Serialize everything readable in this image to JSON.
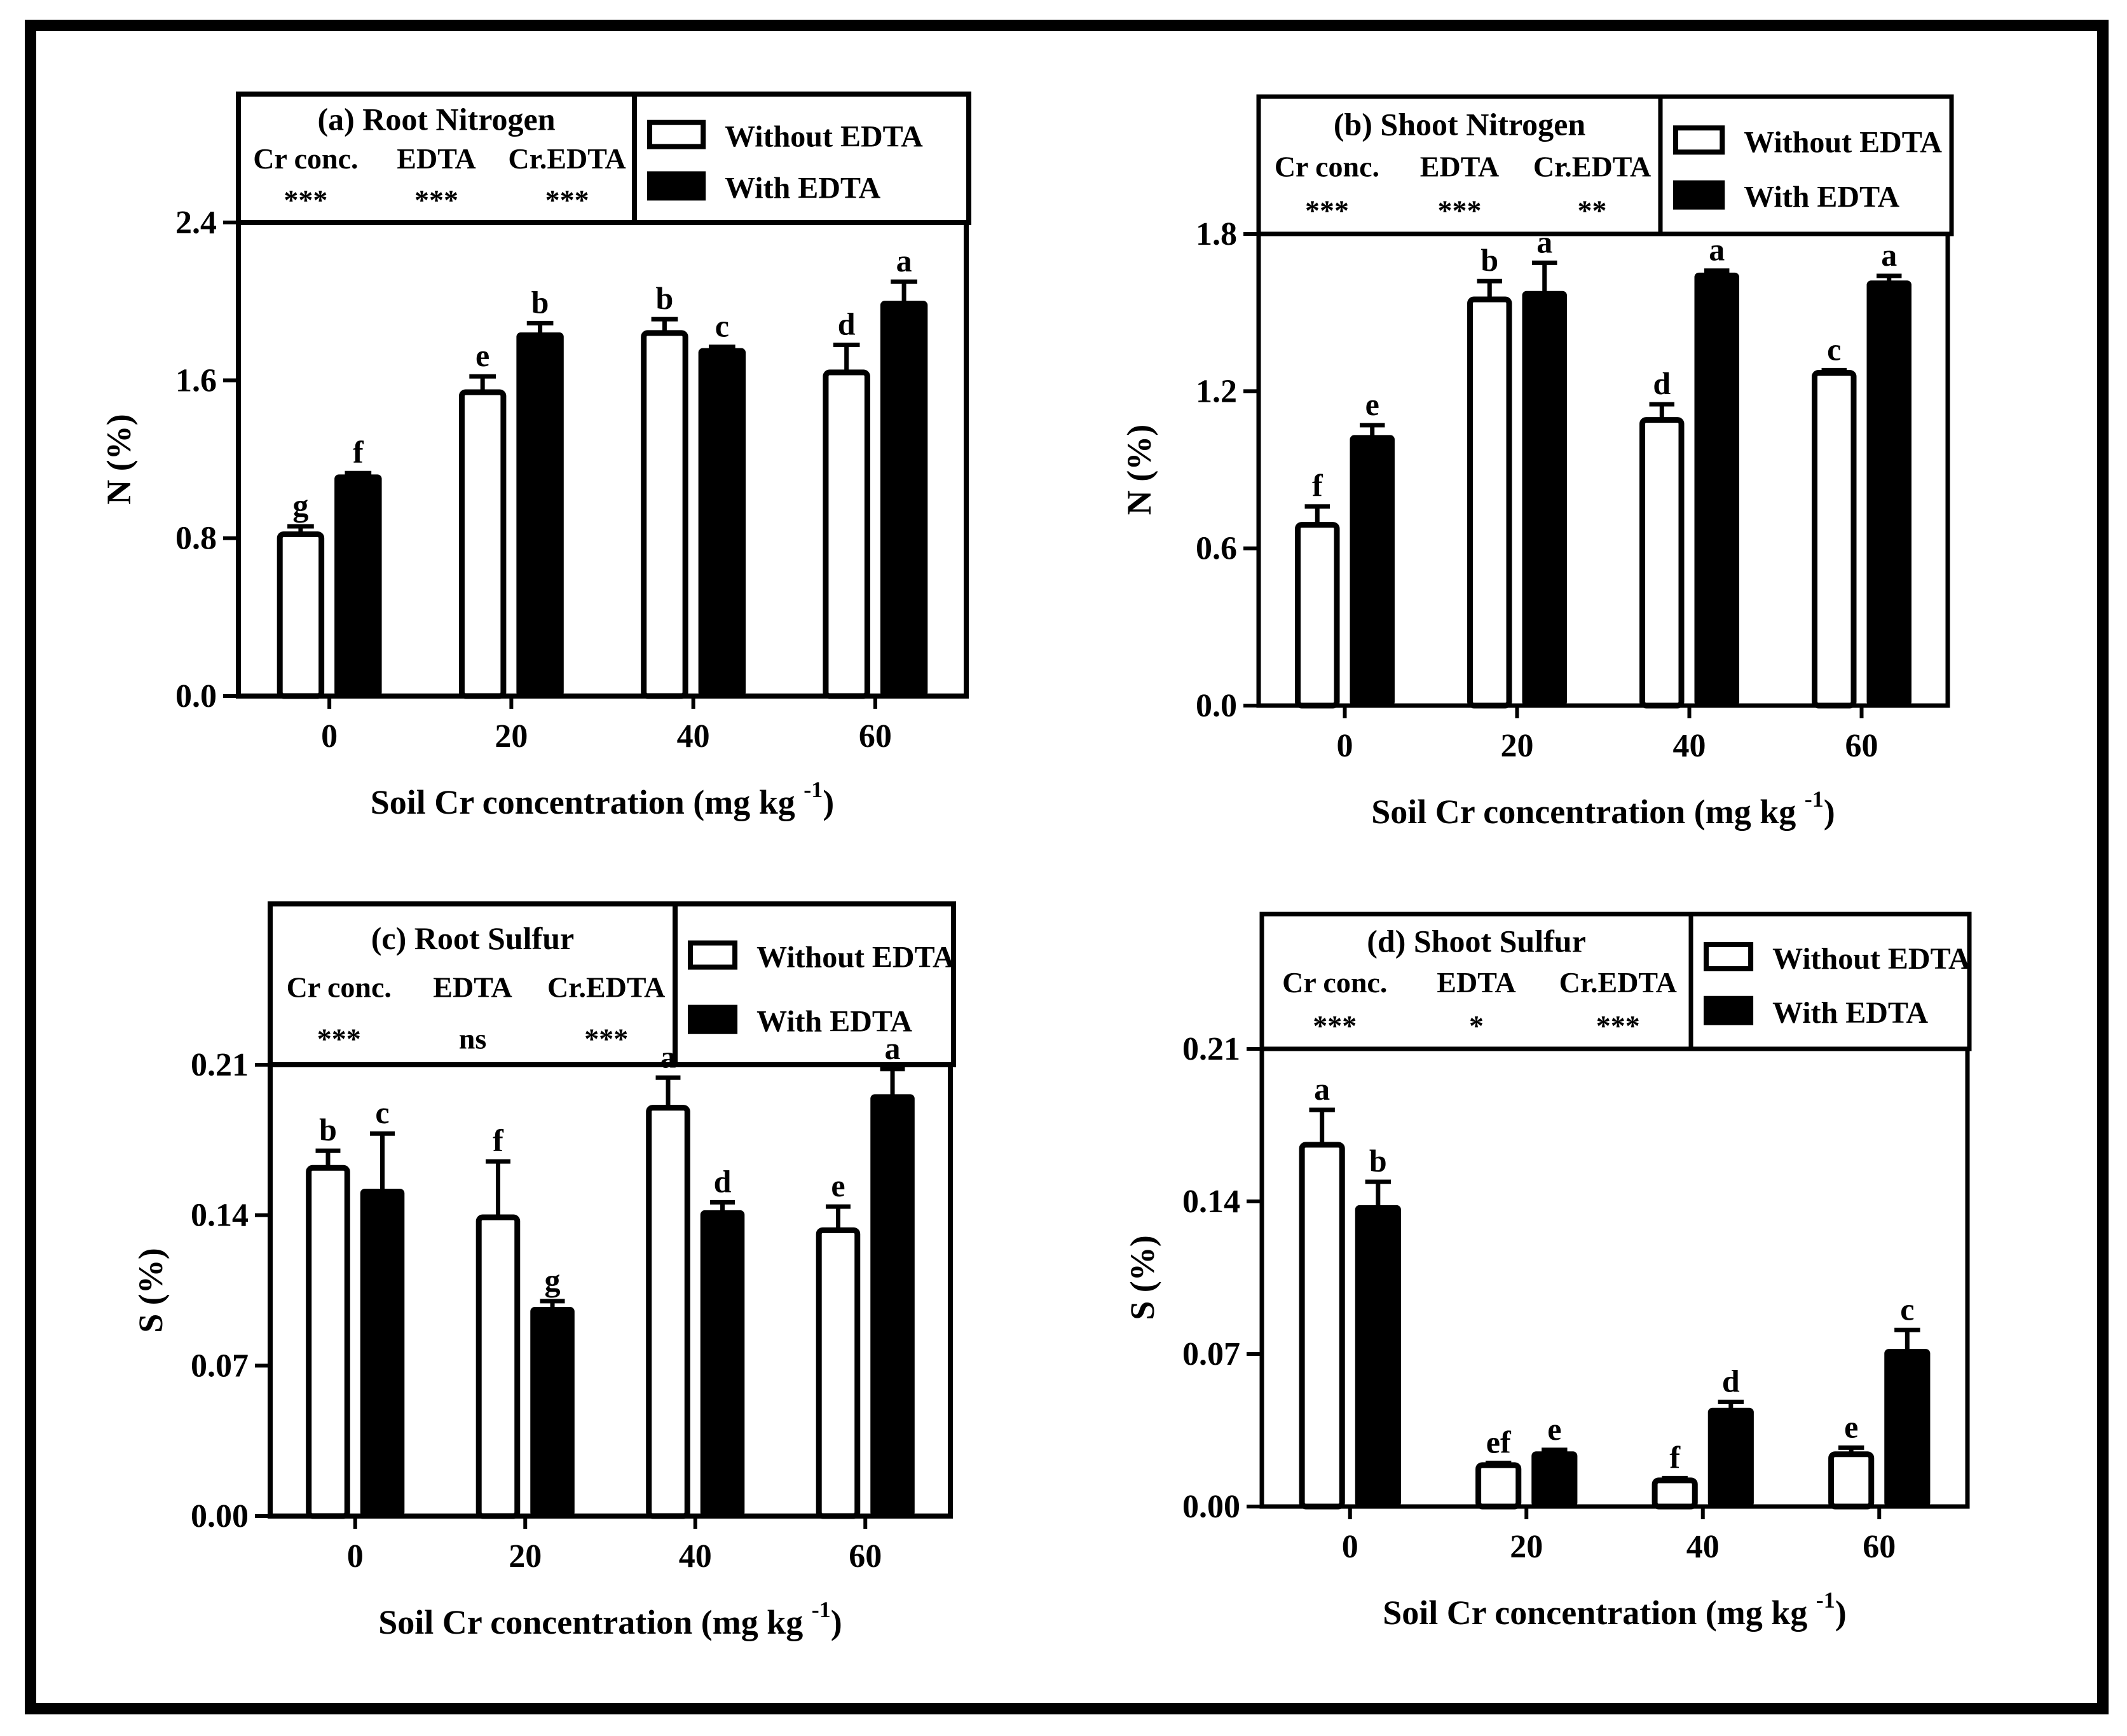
{
  "figure": {
    "background": "#ffffff",
    "frame_color": "#000000"
  },
  "chart_data": [
    {
      "type": "bar",
      "title": "(a) Root Nitrogen",
      "xlabel": "Soil Cr concentration (mg kg",
      "xlabel_sup": "-1",
      "xlabel_close": ")",
      "ylabel": "N (%)",
      "categories": [
        "0",
        "20",
        "40",
        "60"
      ],
      "ylim": [
        0,
        2.4
      ],
      "yticks": [
        "0.0",
        "0.8",
        "1.6",
        "2.4"
      ],
      "stats": {
        "headers": [
          "Cr conc.",
          "EDTA",
          "Cr.EDTA"
        ],
        "values": [
          "***",
          "***",
          "***"
        ]
      },
      "legend": [
        "Without EDTA",
        "With EDTA"
      ],
      "series": [
        {
          "name": "Without EDTA",
          "fill": "#ffffff",
          "values": [
            0.82,
            1.54,
            1.84,
            1.64
          ],
          "errors": [
            0.04,
            0.08,
            0.07,
            0.14
          ],
          "letters": [
            "g",
            "e",
            "b",
            "d"
          ]
        },
        {
          "name": "With EDTA",
          "fill": "#000000",
          "values": [
            1.12,
            1.84,
            1.76,
            2.0
          ],
          "errors": [
            0.01,
            0.05,
            0.01,
            0.1
          ],
          "letters": [
            "f",
            "b",
            "c",
            "a"
          ]
        }
      ]
    },
    {
      "type": "bar",
      "title": "(b) Shoot Nitrogen",
      "xlabel": "Soil Cr concentration (mg kg",
      "xlabel_sup": "-1",
      "xlabel_close": ")",
      "ylabel": "N (%)",
      "categories": [
        "0",
        "20",
        "40",
        "60"
      ],
      "ylim": [
        0,
        1.8
      ],
      "yticks": [
        "0.0",
        "0.6",
        "1.2",
        "1.8"
      ],
      "stats": {
        "headers": [
          "Cr conc.",
          "EDTA",
          "Cr.EDTA"
        ],
        "values": [
          "***",
          "***",
          "**"
        ]
      },
      "legend": [
        "Without EDTA",
        "With EDTA"
      ],
      "series": [
        {
          "name": "Without EDTA",
          "fill": "#ffffff",
          "values": [
            0.69,
            1.55,
            1.09,
            1.27
          ],
          "errors": [
            0.07,
            0.07,
            0.06,
            0.01
          ],
          "letters": [
            "f",
            "b",
            "d",
            "c"
          ]
        },
        {
          "name": "With EDTA",
          "fill": "#000000",
          "values": [
            1.03,
            1.58,
            1.65,
            1.62
          ],
          "errors": [
            0.04,
            0.11,
            0.01,
            0.02
          ],
          "letters": [
            "e",
            "a",
            "a",
            "a"
          ]
        }
      ]
    },
    {
      "type": "bar",
      "title": "(c) Root Sulfur",
      "xlabel": "Soil Cr concentration (mg kg",
      "xlabel_sup": "-1",
      "xlabel_close": ")",
      "ylabel": "S (%)",
      "categories": [
        "0",
        "20",
        "40",
        "60"
      ],
      "ylim": [
        0,
        0.21
      ],
      "yticks": [
        "0.00",
        "0.07",
        "0.14",
        "0.21"
      ],
      "stats": {
        "headers": [
          "Cr conc.",
          "EDTA",
          "Cr.EDTA"
        ],
        "values": [
          "***",
          "ns",
          "***"
        ]
      },
      "legend": [
        "Without EDTA",
        "With EDTA"
      ],
      "series": [
        {
          "name": "Without EDTA",
          "fill": "#ffffff",
          "values": [
            0.162,
            0.139,
            0.19,
            0.133
          ],
          "errors": [
            0.008,
            0.026,
            0.014,
            0.011
          ],
          "letters": [
            "b",
            "f",
            "a",
            "e"
          ]
        },
        {
          "name": "With EDTA",
          "fill": "#000000",
          "values": [
            0.152,
            0.097,
            0.142,
            0.196
          ],
          "errors": [
            0.026,
            0.003,
            0.004,
            0.012
          ],
          "letters": [
            "c",
            "g",
            "d",
            "a"
          ]
        }
      ]
    },
    {
      "type": "bar",
      "title": "(d) Shoot Sulfur",
      "xlabel": "Soil Cr concentration (mg kg",
      "xlabel_sup": "-1",
      "xlabel_close": ")",
      "ylabel": "S (%)",
      "categories": [
        "0",
        "20",
        "40",
        "60"
      ],
      "ylim": [
        0,
        0.21
      ],
      "yticks": [
        "0.00",
        "0.07",
        "0.14",
        "0.21"
      ],
      "stats": {
        "headers": [
          "Cr conc.",
          "EDTA",
          "Cr.EDTA"
        ],
        "values": [
          "***",
          "*",
          "***"
        ]
      },
      "legend": [
        "Without EDTA",
        "With EDTA"
      ],
      "series": [
        {
          "name": "Without EDTA",
          "fill": "#ffffff",
          "values": [
            0.166,
            0.019,
            0.012,
            0.024
          ],
          "errors": [
            0.016,
            0.001,
            0.001,
            0.003
          ],
          "letters": [
            "a",
            "ef",
            "f",
            "e"
          ]
        },
        {
          "name": "With EDTA",
          "fill": "#000000",
          "values": [
            0.138,
            0.025,
            0.045,
            0.072
          ],
          "errors": [
            0.011,
            0.001,
            0.003,
            0.009
          ],
          "letters": [
            "b",
            "e",
            "d",
            "c"
          ]
        }
      ]
    }
  ]
}
